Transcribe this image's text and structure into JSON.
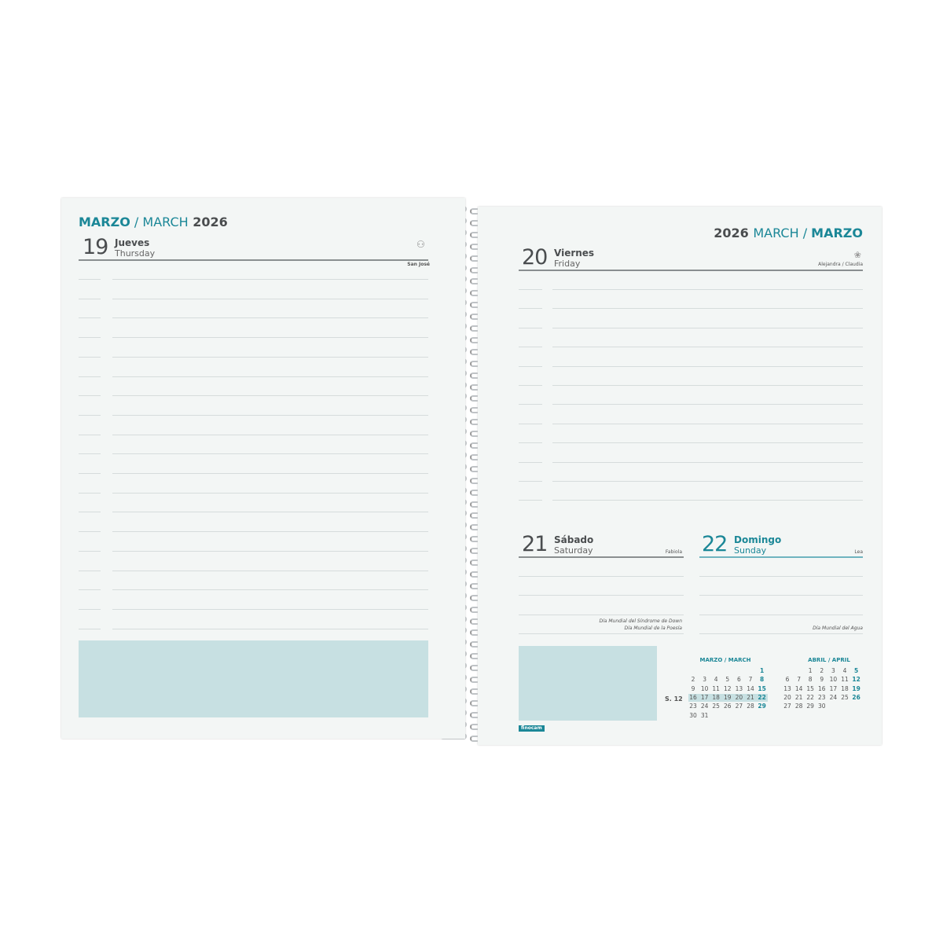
{
  "left_page": {
    "month_header": {
      "es": "MARZO",
      "sep": " / ",
      "en": "MARCH",
      "year": " 2026"
    },
    "day": {
      "number": "19",
      "name_es": "Jueves",
      "name_en": "Thursday",
      "saint": "San José",
      "icon": "person-icon"
    }
  },
  "right_page": {
    "month_header": {
      "year": "2026 ",
      "en": "MARCH",
      "sep": " / ",
      "es": "MARZO"
    },
    "day20": {
      "number": "20",
      "name_es": "Viernes",
      "name_en": "Friday",
      "saint": "Alejandra / Claudia",
      "icon": "flower-icon"
    },
    "day21": {
      "number": "21",
      "name_es": "Sábado",
      "name_en": "Saturday",
      "saint": "Fabiola",
      "events": [
        "Día Mundial del Síndrome de Down",
        "Día Mundial de la Poesía"
      ]
    },
    "day22": {
      "number": "22",
      "name_es": "Domingo",
      "name_en": "Sunday",
      "saint": "Lea",
      "events": [
        "Día Mundial del Agua"
      ]
    },
    "week_label": "S. 12",
    "brand": "finocam",
    "mini_calendars": [
      {
        "title": "MARZO / MARCH",
        "start_col": 6,
        "days": 31,
        "highlight_week": [
          16,
          22
        ]
      },
      {
        "title": "ABRIL / APRIL",
        "start_col": 2,
        "days": 30
      }
    ]
  },
  "colors": {
    "accent": "#1b8797",
    "note_box": "#c7e0e2",
    "page": "#f3f6f5"
  }
}
